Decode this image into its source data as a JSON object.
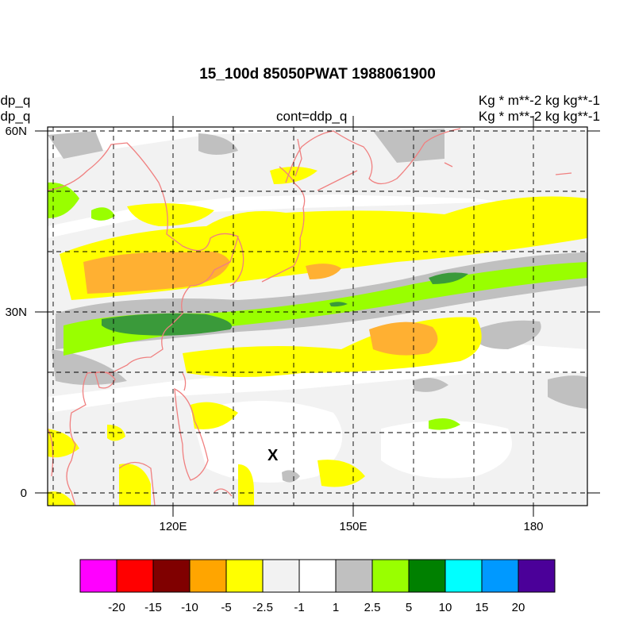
{
  "title": "15_100d 85050PWAT  1988061900",
  "left_labels": [
    "ddp_q",
    "ddp_q"
  ],
  "center_label": "cont=ddp_q",
  "right_labels": [
    "Kg  * m**-2 kg kg**-1",
    "Kg  * m**-2 kg kg**-1"
  ],
  "y_ticks": [
    "60N",
    "30N",
    "0"
  ],
  "x_ticks": [
    "120E",
    "150E",
    "180"
  ],
  "marker": "X",
  "colors": {
    "coast": "#f08080",
    "grid": "#000000"
  },
  "colorbar": {
    "colors": [
      "#ff00ff",
      "#ff0000",
      "#800000",
      "#ffa500",
      "#ffff00",
      "#f2f2f2",
      "#ffffff",
      "#c0c0c0",
      "#99ff00",
      "#008000",
      "#00ffff",
      "#0099ff",
      "#4b0099"
    ],
    "labels": [
      "-20",
      "-15",
      "-10",
      "-5",
      "-2.5",
      "-1",
      "1",
      "2.5",
      "5",
      "10",
      "15",
      "20"
    ]
  },
  "map_data": {
    "lon_range": [
      100,
      190
    ],
    "lat_range": [
      -2,
      60
    ]
  }
}
